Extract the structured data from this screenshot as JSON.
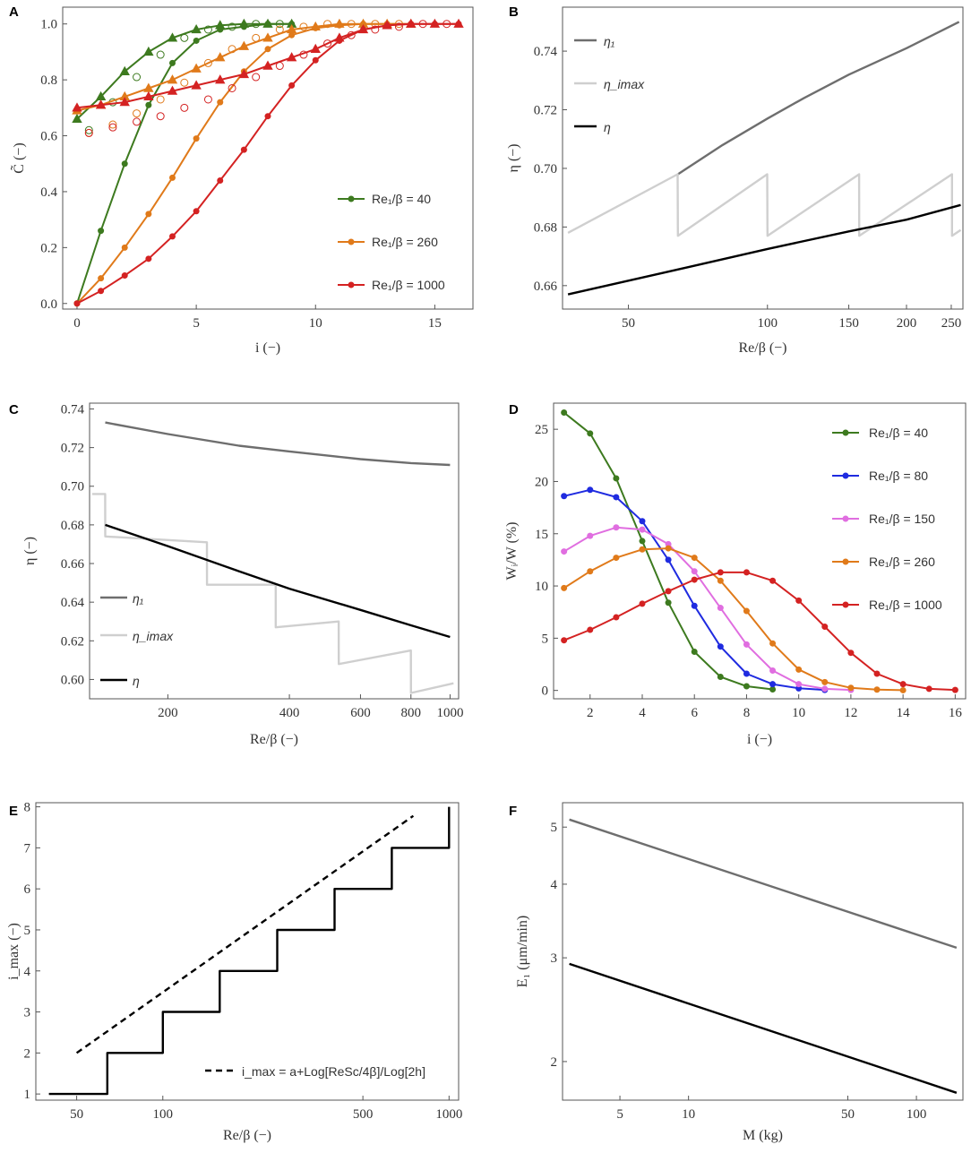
{
  "chart_data": [
    {
      "panel": "A",
      "type": "line",
      "xlabel": "i (−)",
      "ylabel": "C̃ (−)",
      "xlim": [
        -0.6,
        16.6
      ],
      "ylim": [
        -0.02,
        1.06
      ],
      "xticks": [
        0,
        5,
        10,
        15
      ],
      "yticks": [
        0.0,
        0.2,
        0.4,
        0.6,
        0.8,
        1.0
      ],
      "xtick_labels": [
        "0",
        "5",
        "10",
        "15"
      ],
      "ytick_labels": [
        "0.0",
        "0.2",
        "0.4",
        "0.6",
        "0.8",
        "1.0"
      ],
      "legend": [
        "Re₁/β = 40",
        "Re₁/β = 260",
        "Re₁/β = 1000"
      ],
      "series": [
        {
          "name": "Re1/beta=40 dots",
          "color": "#3d7a1f",
          "marker": "dot",
          "x": [
            0,
            1,
            2,
            3,
            4,
            5,
            6,
            7,
            8,
            9
          ],
          "y": [
            0.0,
            0.26,
            0.5,
            0.71,
            0.86,
            0.94,
            0.98,
            0.99,
            1.0,
            1.0
          ]
        },
        {
          "name": "Re1/beta=40 triangles",
          "color": "#3d7a1f",
          "marker": "tri",
          "x": [
            0,
            1,
            2,
            3,
            4,
            5,
            6,
            7,
            8,
            9
          ],
          "y": [
            0.66,
            0.74,
            0.83,
            0.9,
            0.95,
            0.98,
            0.995,
            1.0,
            1.0,
            1.0
          ]
        },
        {
          "name": "Re1/beta=40 open",
          "color": "#3d7a1f",
          "marker": "open",
          "x": [
            0.5,
            1.5,
            2.5,
            3.5,
            4.5,
            5.5,
            6.5,
            7.5,
            8.5
          ],
          "y": [
            0.62,
            0.72,
            0.81,
            0.89,
            0.95,
            0.98,
            0.99,
            1.0,
            1.0
          ]
        },
        {
          "name": "Re1/beta=260 dots",
          "color": "#e07a1a",
          "marker": "dot",
          "x": [
            0,
            1,
            2,
            3,
            4,
            5,
            6,
            7,
            8,
            9,
            10,
            11,
            12,
            13,
            14
          ],
          "y": [
            0.0,
            0.09,
            0.2,
            0.32,
            0.45,
            0.59,
            0.72,
            0.83,
            0.91,
            0.96,
            0.985,
            0.995,
            1.0,
            1.0,
            1.0
          ]
        },
        {
          "name": "Re1/beta=260 triangles",
          "color": "#e07a1a",
          "marker": "tri",
          "x": [
            0,
            1,
            2,
            3,
            4,
            5,
            6,
            7,
            8,
            9,
            10,
            11,
            12,
            13,
            14
          ],
          "y": [
            0.69,
            0.71,
            0.74,
            0.77,
            0.8,
            0.84,
            0.88,
            0.92,
            0.95,
            0.98,
            0.99,
            1.0,
            1.0,
            1.0,
            1.0
          ]
        },
        {
          "name": "Re1/beta=260 open",
          "color": "#e07a1a",
          "marker": "open",
          "x": [
            0.5,
            1.5,
            2.5,
            3.5,
            4.5,
            5.5,
            6.5,
            7.5,
            8.5,
            9.5,
            10.5,
            11.5,
            12.5,
            13.5
          ],
          "y": [
            0.61,
            0.64,
            0.68,
            0.73,
            0.79,
            0.86,
            0.91,
            0.95,
            0.98,
            0.99,
            1.0,
            1.0,
            1.0,
            1.0
          ]
        },
        {
          "name": "Re1/beta=1000 dots",
          "color": "#d42222",
          "marker": "dot",
          "x": [
            0,
            1,
            2,
            3,
            4,
            5,
            6,
            7,
            8,
            9,
            10,
            11,
            12,
            13,
            14,
            15,
            16
          ],
          "y": [
            0.0,
            0.045,
            0.1,
            0.16,
            0.24,
            0.33,
            0.44,
            0.55,
            0.67,
            0.78,
            0.87,
            0.94,
            0.98,
            0.995,
            1.0,
            1.0,
            1.0
          ]
        },
        {
          "name": "Re1/beta=1000 triangles",
          "color": "#d42222",
          "marker": "tri",
          "x": [
            0,
            1,
            2,
            3,
            4,
            5,
            6,
            7,
            8,
            9,
            10,
            11,
            12,
            13,
            14,
            15,
            16
          ],
          "y": [
            0.7,
            0.71,
            0.72,
            0.74,
            0.76,
            0.78,
            0.8,
            0.82,
            0.85,
            0.88,
            0.91,
            0.95,
            0.98,
            0.995,
            1.0,
            1.0,
            1.0
          ]
        },
        {
          "name": "Re1/beta=1000 open",
          "color": "#d42222",
          "marker": "open",
          "x": [
            0.5,
            1.5,
            2.5,
            3.5,
            4.5,
            5.5,
            6.5,
            7.5,
            8.5,
            9.5,
            10.5,
            11.5,
            12.5,
            13.5,
            14.5,
            15.5
          ],
          "y": [
            0.61,
            0.63,
            0.65,
            0.67,
            0.7,
            0.73,
            0.77,
            0.81,
            0.85,
            0.89,
            0.93,
            0.96,
            0.98,
            0.99,
            1.0,
            1.0
          ]
        }
      ]
    },
    {
      "panel": "B",
      "type": "line",
      "xscale": "log",
      "xlabel": "Re/β (−)",
      "ylabel": "η (−)",
      "xlim": [
        36,
        265
      ],
      "ylim": [
        0.652,
        0.755
      ],
      "xticks": [
        50,
        100,
        150,
        200,
        250
      ],
      "xtick_labels": [
        "50",
        "100",
        "150",
        "200",
        "250"
      ],
      "yticks": [
        0.66,
        0.68,
        0.7,
        0.72,
        0.74
      ],
      "ytick_labels": [
        "0.66",
        "0.68",
        "0.70",
        "0.72",
        "0.74"
      ],
      "legend": [
        "η₁",
        "η_imax",
        "η"
      ],
      "series": [
        {
          "name": "eta1",
          "color": "#6e6e6e",
          "x": [
            64,
            80,
            100,
            120,
            150,
            200,
            260
          ],
          "y": [
            0.698,
            0.708,
            0.717,
            0.724,
            0.732,
            0.741,
            0.75
          ]
        },
        {
          "name": "eta_imax",
          "color": "#cfcfcf",
          "x": [
            37,
            63.9,
            64,
            99.9,
            100,
            157.9,
            158,
            250.9,
            251,
            262
          ],
          "y": [
            0.678,
            0.698,
            0.677,
            0.698,
            0.677,
            0.698,
            0.677,
            0.698,
            0.677,
            0.679
          ]
        },
        {
          "name": "eta",
          "color": "#000000",
          "x": [
            37,
            60,
            100,
            150,
            200,
            262
          ],
          "y": [
            0.657,
            0.6645,
            0.6725,
            0.6785,
            0.6825,
            0.6875
          ]
        }
      ]
    },
    {
      "panel": "C",
      "type": "line",
      "xscale": "log",
      "xlabel": "Re/β (−)",
      "ylabel": "η (−)",
      "xlim": [
        128,
        1050
      ],
      "ylim": [
        0.59,
        0.743
      ],
      "xticks": [
        200,
        400,
        600,
        800,
        1000
      ],
      "xtick_labels": [
        "200",
        "400",
        "600",
        "800",
        "1000"
      ],
      "yticks": [
        0.6,
        0.62,
        0.64,
        0.66,
        0.68,
        0.7,
        0.72,
        0.74
      ],
      "ytick_labels": [
        "0.60",
        "0.62",
        "0.64",
        "0.66",
        "0.68",
        "0.70",
        "0.72",
        "0.74"
      ],
      "legend": [
        "η₁",
        "η_imax",
        "η"
      ],
      "series": [
        {
          "name": "eta1",
          "color": "#6e6e6e",
          "x": [
            140,
            200,
            300,
            400,
            600,
            800,
            1000
          ],
          "y": [
            0.733,
            0.727,
            0.721,
            0.718,
            0.714,
            0.712,
            0.711
          ]
        },
        {
          "name": "eta_imax",
          "color": "#cfcfcf",
          "x": [
            130,
            139.9,
            140,
            249.9,
            250,
            369.9,
            370,
            529.9,
            530,
            799.9,
            800,
            1020
          ],
          "y": [
            0.696,
            0.696,
            0.674,
            0.671,
            0.649,
            0.649,
            0.627,
            0.63,
            0.608,
            0.615,
            0.593,
            0.598
          ]
        },
        {
          "name": "eta",
          "color": "#000000",
          "x": [
            140,
            200,
            300,
            400,
            600,
            800,
            1000
          ],
          "y": [
            0.68,
            0.669,
            0.656,
            0.647,
            0.636,
            0.628,
            0.622
          ]
        }
      ]
    },
    {
      "panel": "D",
      "type": "line",
      "xlabel": "i (−)",
      "ylabel": "Wᵢ/W (%)",
      "xlim": [
        0.6,
        16.4
      ],
      "ylim": [
        -0.8,
        27.5
      ],
      "xticks": [
        2,
        4,
        6,
        8,
        10,
        12,
        14,
        16
      ],
      "xtick_labels": [
        "2",
        "4",
        "6",
        "8",
        "10",
        "12",
        "14",
        "16"
      ],
      "yticks": [
        0,
        5,
        10,
        15,
        20,
        25
      ],
      "ytick_labels": [
        "0",
        "5",
        "10",
        "15",
        "20",
        "25"
      ],
      "legend": [
        "Re₁/β = 40",
        "Re₁/β = 80",
        "Re₁/β = 150",
        "Re₁/β = 260",
        "Re₁/β = 1000"
      ],
      "series": [
        {
          "name": "Re1/beta=40",
          "color": "#3d7a1f",
          "x": [
            1,
            2,
            3,
            4,
            5,
            6,
            7,
            8,
            9
          ],
          "y": [
            26.6,
            24.6,
            20.3,
            14.3,
            8.4,
            3.7,
            1.3,
            0.4,
            0.1
          ]
        },
        {
          "name": "Re1/beta=80",
          "color": "#1f2be0",
          "x": [
            1,
            2,
            3,
            4,
            5,
            6,
            7,
            8,
            9,
            10,
            11
          ],
          "y": [
            18.6,
            19.2,
            18.5,
            16.2,
            12.5,
            8.1,
            4.2,
            1.6,
            0.6,
            0.2,
            0.05
          ]
        },
        {
          "name": "Re1/beta=150",
          "color": "#e06ee0",
          "x": [
            1,
            2,
            3,
            4,
            5,
            6,
            7,
            8,
            9,
            10,
            11,
            12
          ],
          "y": [
            13.3,
            14.8,
            15.6,
            15.4,
            14.0,
            11.4,
            7.9,
            4.4,
            1.9,
            0.6,
            0.15,
            0.05
          ]
        },
        {
          "name": "Re1/beta=260",
          "color": "#e07a1a",
          "x": [
            1,
            2,
            3,
            4,
            5,
            6,
            7,
            8,
            9,
            10,
            11,
            12,
            13,
            14
          ],
          "y": [
            9.8,
            11.4,
            12.7,
            13.5,
            13.6,
            12.7,
            10.5,
            7.6,
            4.5,
            2.0,
            0.8,
            0.25,
            0.08,
            0.02
          ]
        },
        {
          "name": "Re1/beta=1000",
          "color": "#d42222",
          "x": [
            1,
            2,
            3,
            4,
            5,
            6,
            7,
            8,
            9,
            10,
            11,
            12,
            13,
            14,
            15,
            16
          ],
          "y": [
            4.8,
            5.8,
            7.0,
            8.3,
            9.5,
            10.6,
            11.3,
            11.3,
            10.5,
            8.6,
            6.1,
            3.6,
            1.6,
            0.6,
            0.15,
            0.05
          ]
        }
      ]
    },
    {
      "panel": "E",
      "type": "line",
      "xscale": "log",
      "xlabel": "Re/β (−)",
      "ylabel": "i_max (−)",
      "xlim": [
        36,
        1080
      ],
      "ylim": [
        0.85,
        8.1
      ],
      "xticks": [
        50,
        100,
        500,
        1000
      ],
      "xtick_labels": [
        "50",
        "100",
        "500",
        "1000"
      ],
      "yticks": [
        1,
        2,
        3,
        4,
        5,
        6,
        7,
        8
      ],
      "ytick_labels": [
        "1",
        "2",
        "3",
        "4",
        "5",
        "6",
        "7",
        "8"
      ],
      "legend": [
        "i_max = a+Log[ReSc/4β]/Log[2h]"
      ],
      "series": [
        {
          "name": "i_max step",
          "color": "#000000",
          "x": [
            40,
            64,
            64,
            100,
            100,
            158,
            158,
            251,
            251,
            398,
            398,
            631,
            631,
            1000,
            1000
          ],
          "y": [
            1,
            1,
            2,
            2,
            3,
            3,
            4,
            4,
            5,
            5,
            6,
            6,
            7,
            7,
            8
          ]
        },
        {
          "name": "fit dashed",
          "color": "#000000",
          "style": "dashed",
          "x": [
            50,
            750
          ],
          "y": [
            2.0,
            7.78
          ]
        }
      ]
    },
    {
      "panel": "F",
      "type": "line",
      "xscale": "log",
      "yscale": "log",
      "xlabel": "M (kg)",
      "ylabel": "E₁ (μm/min)",
      "xlim": [
        2.8,
        160
      ],
      "ylim": [
        1.72,
        5.5
      ],
      "xticks": [
        5,
        10,
        50,
        100
      ],
      "xtick_labels": [
        "5",
        "10",
        "50",
        "100"
      ],
      "yticks": [
        2,
        3,
        4,
        5
      ],
      "ytick_labels": [
        "2",
        "3",
        "4",
        "5"
      ],
      "series": [
        {
          "name": "upper",
          "color": "#6e6e6e",
          "x": [
            3,
            150
          ],
          "y": [
            5.15,
            3.12
          ]
        },
        {
          "name": "lower",
          "color": "#000000",
          "x": [
            3,
            150
          ],
          "y": [
            2.93,
            1.77
          ]
        }
      ]
    }
  ]
}
